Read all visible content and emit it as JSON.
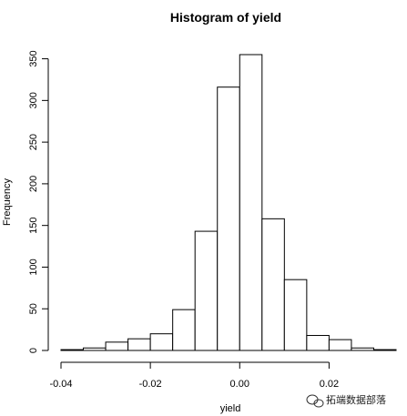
{
  "chart_data": {
    "type": "bar",
    "title": "Histogram of yield",
    "xlabel": "yield",
    "ylabel": "Frequency",
    "bin_width": 0.005,
    "bins": [
      {
        "from": -0.04,
        "to": -0.035,
        "count": 1
      },
      {
        "from": -0.035,
        "to": -0.03,
        "count": 3
      },
      {
        "from": -0.03,
        "to": -0.025,
        "count": 10
      },
      {
        "from": -0.025,
        "to": -0.02,
        "count": 14
      },
      {
        "from": -0.02,
        "to": -0.015,
        "count": 20
      },
      {
        "from": -0.015,
        "to": -0.01,
        "count": 49
      },
      {
        "from": -0.01,
        "to": -0.005,
        "count": 143
      },
      {
        "from": -0.005,
        "to": 0.0,
        "count": 316
      },
      {
        "from": 0.0,
        "to": 0.005,
        "count": 355
      },
      {
        "from": 0.005,
        "to": 0.01,
        "count": 158
      },
      {
        "from": 0.01,
        "to": 0.015,
        "count": 85
      },
      {
        "from": 0.015,
        "to": 0.02,
        "count": 18
      },
      {
        "from": 0.02,
        "to": 0.025,
        "count": 13
      },
      {
        "from": 0.025,
        "to": 0.03,
        "count": 3
      },
      {
        "from": 0.03,
        "to": 0.035,
        "count": 1
      }
    ],
    "xlim": [
      -0.04,
      0.035
    ],
    "ylim": [
      0,
      355
    ],
    "x_ticks": [
      {
        "value": -0.04,
        "label": "-0.04"
      },
      {
        "value": -0.02,
        "label": "-0.02"
      },
      {
        "value": 0.0,
        "label": "0.00"
      },
      {
        "value": 0.02,
        "label": "0.02"
      }
    ],
    "y_ticks": [
      {
        "value": 0,
        "label": "0"
      },
      {
        "value": 50,
        "label": "50"
      },
      {
        "value": 100,
        "label": "100"
      },
      {
        "value": 150,
        "label": "150"
      },
      {
        "value": 200,
        "label": "200"
      },
      {
        "value": 250,
        "label": "250"
      },
      {
        "value": 300,
        "label": "300"
      },
      {
        "value": 350,
        "label": "350"
      }
    ],
    "grid": false,
    "bar_fill": "#ffffff",
    "bar_stroke": "#000000"
  },
  "watermark": {
    "text": "拓端数据部落"
  }
}
